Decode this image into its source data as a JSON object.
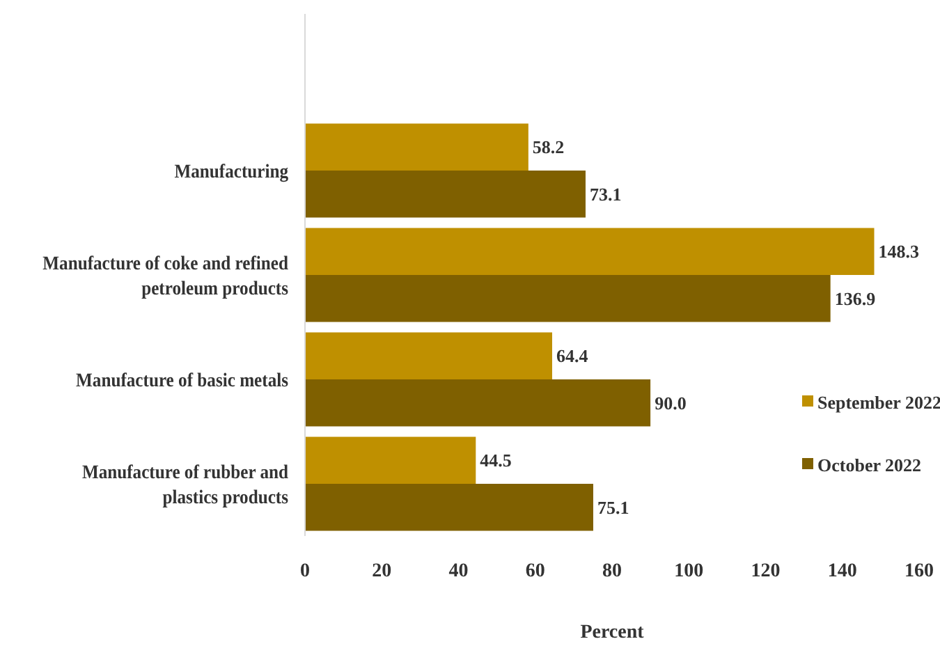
{
  "chart_data": {
    "type": "bar",
    "orientation": "horizontal",
    "xlabel": "Percent",
    "categories": [
      "Manufacturing",
      "Manufacture of coke and refined petroleum products",
      "Manufacture of basic metals",
      "Manufacture of rubber and plastics products"
    ],
    "series": [
      {
        "name": "September 2022",
        "color": "#bf9000",
        "values": [
          58.2,
          148.3,
          64.4,
          44.5
        ],
        "value_labels": [
          "58.2",
          "148.3",
          "64.4",
          "44.5"
        ]
      },
      {
        "name": "October 2022",
        "color": "#7f6000",
        "values": [
          73.1,
          136.9,
          90.0,
          75.1
        ],
        "value_labels": [
          "73.1",
          "136.9",
          "90.0",
          "75.1"
        ]
      }
    ],
    "xlim": [
      0,
      160
    ],
    "xticks": [
      0,
      20,
      40,
      60,
      80,
      100,
      120,
      140,
      160
    ],
    "legend": "right",
    "grid": false
  }
}
